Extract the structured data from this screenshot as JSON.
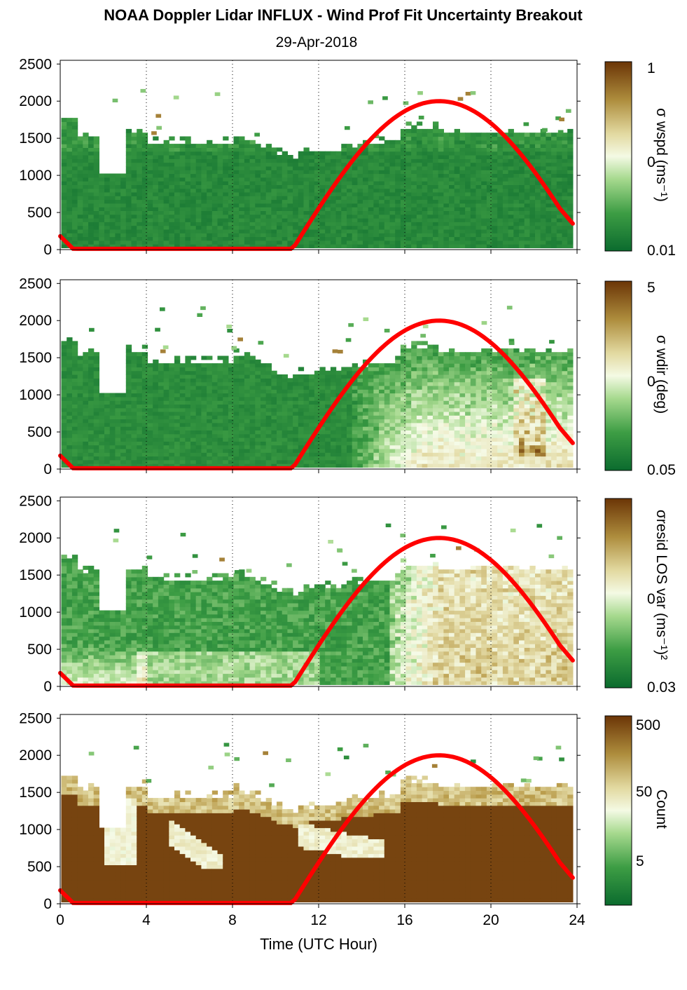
{
  "title": "NOAA Doppler Lidar INFLUX - Wind Prof Fit Uncertainty Breakout",
  "subtitle": "29-Apr-2018",
  "colors": {
    "green_dark": "#0b6b2e",
    "green_mid": "#55b454",
    "green_light": "#d8f0c8",
    "white": "#f6fbe8",
    "tan_light": "#e4dca8",
    "tan_mid": "#b89a48",
    "brown_dark": "#6b3506",
    "sun_curve": "#ff0000"
  },
  "chart_data": [
    {
      "type": "heatmap",
      "name": "wspd",
      "xlabel": "",
      "ylabel": "",
      "colorbar_label": "σ wspd (ms⁻¹)",
      "colorbar_ticks": [
        "1",
        "0",
        "0.01"
      ],
      "colorbar_scale": "log",
      "xlim": [
        0,
        24
      ],
      "ylim": [
        0,
        2550
      ],
      "x_ticks": [
        0,
        4,
        8,
        12,
        16,
        20,
        24
      ],
      "y_ticks": [
        "0",
        "500",
        "1000",
        "1500",
        "2000",
        "2500"
      ],
      "grid": "vertical dotted",
      "overlay_series": {
        "x": [
          0,
          0.6,
          10.8,
          12,
          14,
          16,
          17.6,
          19,
          21,
          22.5,
          23.8
        ],
        "y": [
          180,
          10,
          10,
          420,
          1250,
          1820,
          2000,
          1900,
          1450,
          900,
          350
        ]
      }
    },
    {
      "type": "heatmap",
      "name": "wdir",
      "xlabel": "",
      "ylabel": "",
      "colorbar_label": "σ wdir (deg)",
      "colorbar_ticks": [
        "5",
        "0",
        "0.05"
      ],
      "colorbar_scale": "log",
      "xlim": [
        0,
        24
      ],
      "ylim": [
        0,
        2550
      ],
      "x_ticks": [
        0,
        4,
        8,
        12,
        16,
        20,
        24
      ],
      "y_ticks": [
        "0",
        "500",
        "1000",
        "1500",
        "2000",
        "2500"
      ],
      "grid": "vertical dotted",
      "overlay_series": {
        "x": [
          0,
          0.6,
          10.8,
          12,
          14,
          16,
          17.6,
          19,
          21,
          22.5,
          23.8
        ],
        "y": [
          180,
          10,
          10,
          420,
          1250,
          1820,
          2000,
          1900,
          1450,
          900,
          350
        ]
      }
    },
    {
      "type": "heatmap",
      "name": "resid",
      "xlabel": "",
      "ylabel": "",
      "colorbar_label": "σresid LOS var (ms⁻¹)²",
      "colorbar_ticks": [
        "",
        "0",
        "0.03"
      ],
      "colorbar_scale": "log",
      "xlim": [
        0,
        24
      ],
      "ylim": [
        0,
        2550
      ],
      "x_ticks": [
        0,
        4,
        8,
        12,
        16,
        20,
        24
      ],
      "y_ticks": [
        "0",
        "500",
        "1000",
        "1500",
        "2000",
        "2500"
      ],
      "grid": "vertical dotted",
      "overlay_series": {
        "x": [
          0,
          0.6,
          10.8,
          12,
          14,
          16,
          17.6,
          19,
          21,
          22.5,
          23.8
        ],
        "y": [
          180,
          10,
          10,
          420,
          1250,
          1820,
          2000,
          1900,
          1450,
          900,
          350
        ]
      }
    },
    {
      "type": "heatmap",
      "name": "count",
      "xlabel": "Time (UTC Hour)",
      "ylabel": "",
      "colorbar_label": "Count",
      "colorbar_ticks": [
        "500",
        "50",
        "5"
      ],
      "colorbar_scale": "log",
      "xlim": [
        0,
        24
      ],
      "ylim": [
        0,
        2550
      ],
      "x_ticks": [
        0,
        4,
        8,
        12,
        16,
        20,
        24
      ],
      "x_tick_labels": [
        "0",
        "4",
        "8",
        "12",
        "16",
        "20",
        "24"
      ],
      "y_ticks": [
        "0",
        "500",
        "1000",
        "1500",
        "2000",
        "2500"
      ],
      "grid": "vertical dotted",
      "overlay_series": {
        "x": [
          0,
          0.6,
          10.8,
          12,
          14,
          16,
          17.6,
          19,
          21,
          22.5,
          23.8
        ],
        "y": [
          180,
          10,
          10,
          420,
          1250,
          1820,
          2000,
          1900,
          1450,
          900,
          350
        ]
      }
    }
  ]
}
